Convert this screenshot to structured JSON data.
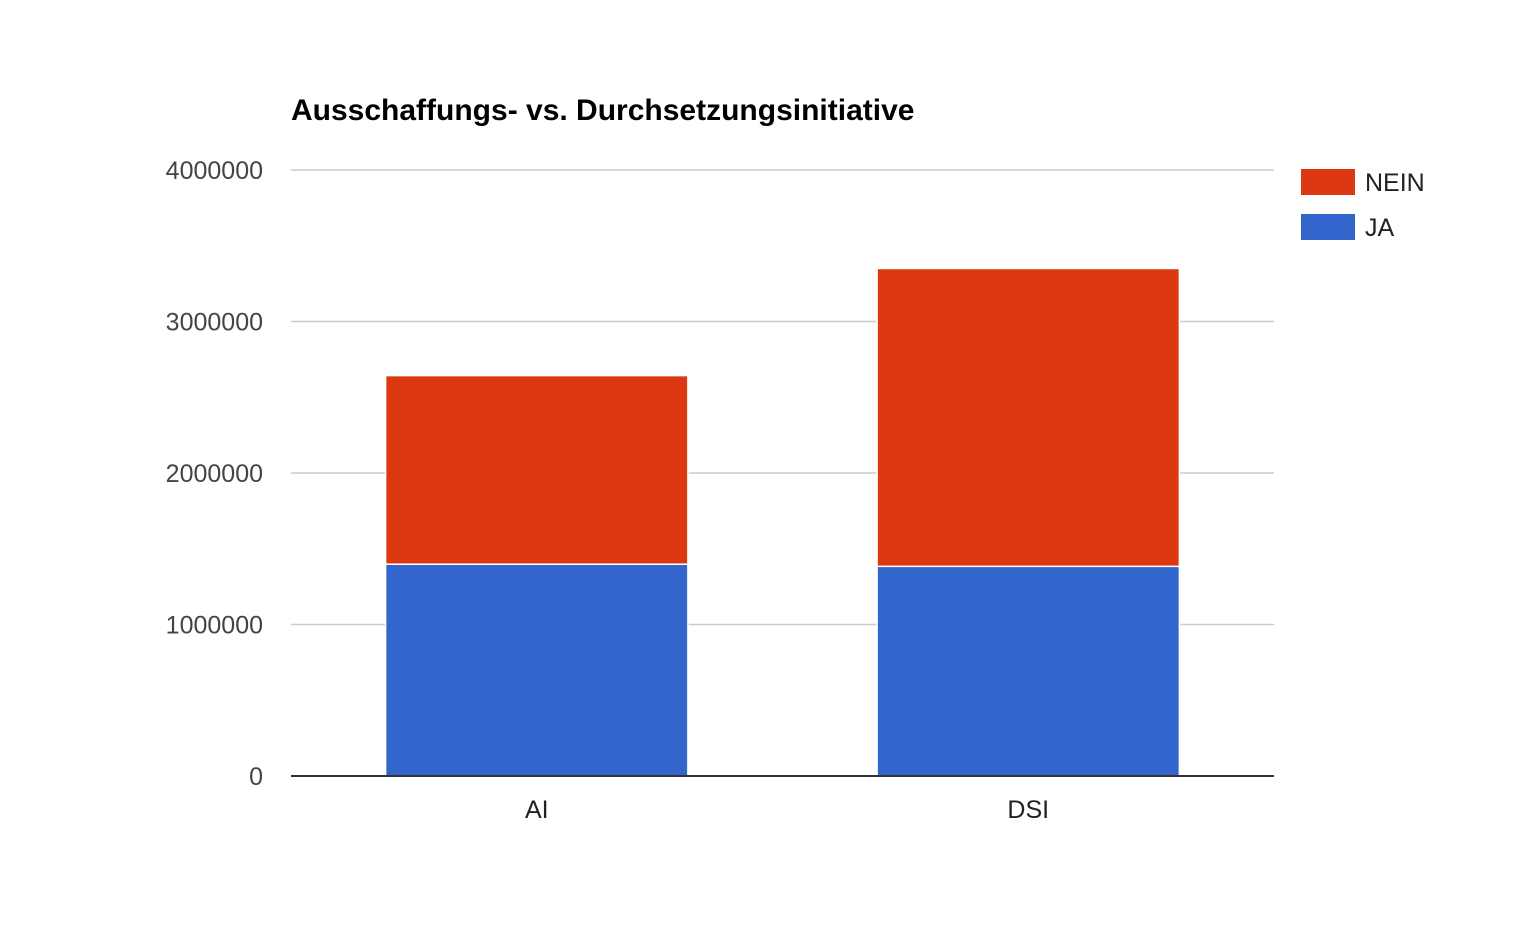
{
  "chart_data": {
    "type": "bar",
    "stacked": true,
    "title": "Ausschaffungs- vs. Durchsetzungsinitiative",
    "categories": [
      "AI",
      "DSI"
    ],
    "series": [
      {
        "name": "JA",
        "color": "#3366cc",
        "values": [
          1398000,
          1384000
        ]
      },
      {
        "name": "NEIN",
        "color": "#dc3912",
        "values": [
          1245000,
          1966000
        ]
      }
    ],
    "ylim": [
      0,
      4000000
    ],
    "yticks": [
      0,
      1000000,
      2000000,
      3000000,
      4000000
    ],
    "ytick_labels": [
      "0",
      "1000000",
      "2000000",
      "3000000",
      "4000000"
    ],
    "grid": true,
    "legend": {
      "position": "right",
      "entries": [
        {
          "label": "NEIN",
          "color": "#dc3912"
        },
        {
          "label": "JA",
          "color": "#3366cc"
        }
      ]
    }
  }
}
